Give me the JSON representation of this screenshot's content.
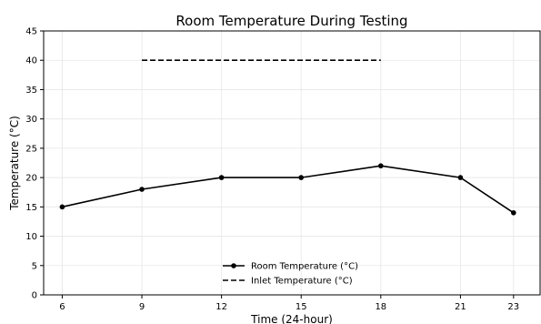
{
  "chart_data": {
    "type": "line",
    "title": "Room Temperature During Testing",
    "xlabel": "Time (24-hour)",
    "ylabel": "Temperature (°C)",
    "xlim": [
      5.3,
      24
    ],
    "ylim": [
      0,
      45
    ],
    "xticks": [
      6,
      9,
      12,
      15,
      18,
      21,
      23
    ],
    "yticks": [
      0,
      5,
      10,
      15,
      20,
      25,
      30,
      35,
      40,
      45
    ],
    "grid": true,
    "legend_position": "bottom-center",
    "series": [
      {
        "name": "Room Temperature (°C)",
        "style": "solid-with-markers",
        "color": "#000000",
        "x": [
          6,
          9,
          12,
          15,
          18,
          21,
          23
        ],
        "y": [
          15,
          18,
          20,
          20,
          22,
          20,
          14
        ]
      },
      {
        "name": "Inlet Temperature (°C)",
        "style": "dashed",
        "color": "#000000",
        "x": [
          9,
          18
        ],
        "y": [
          40,
          40
        ]
      }
    ]
  }
}
